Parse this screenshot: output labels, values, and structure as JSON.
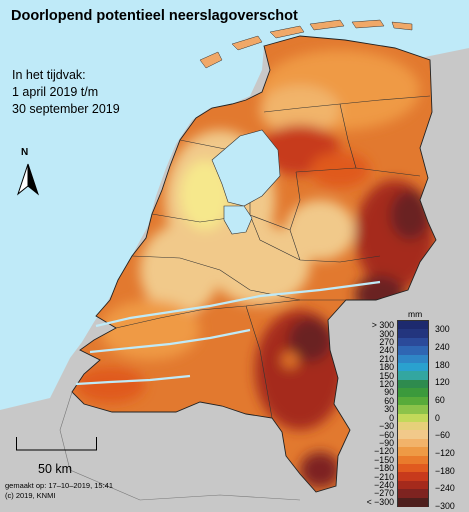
{
  "title": "Doorlopend potentieel neerslagoverschot",
  "period": {
    "line1": "In het tijdvak:",
    "line2": "1 april 2019 t/m",
    "line3": "30 september 2019"
  },
  "north_label": "N",
  "scale_label": "50 km",
  "credits": {
    "made": "gemaakt op: 17–10–2019, 15:41",
    "copyright": "(c) 2019, KNMI"
  },
  "legend": {
    "unit": "mm",
    "left_labels": [
      "> 300",
      "300",
      "270",
      "240",
      "210",
      "180",
      "150",
      "120",
      "90",
      "60",
      "30",
      "0",
      "−30",
      "−60",
      "−90",
      "−120",
      "−150",
      "−180",
      "−210",
      "−240",
      "−270",
      "< −300"
    ],
    "right_labels": [
      "300",
      "240",
      "180",
      "120",
      "60",
      "0",
      "−60",
      "−120",
      "−180",
      "−240",
      "−300"
    ],
    "colors": [
      "#1d2a6e",
      "#23357e",
      "#2b4a9a",
      "#2f66b3",
      "#2f86c6",
      "#2aa1cf",
      "#33a6a0",
      "#2e8b4e",
      "#3b9a3c",
      "#58ab3a",
      "#8cc34a",
      "#c2d95a",
      "#e6d07a",
      "#f1c98a",
      "#f2b36a",
      "#ee9a45",
      "#e97b2c",
      "#e05a1f",
      "#c73a1c",
      "#a52a1c",
      "#7e2320",
      "#4e1f1d"
    ]
  },
  "colors": {
    "sea": "#bfeaf8",
    "land_outside": "#c8c8c8",
    "wettest": "#f6e88c",
    "driest": "#5a201c"
  }
}
